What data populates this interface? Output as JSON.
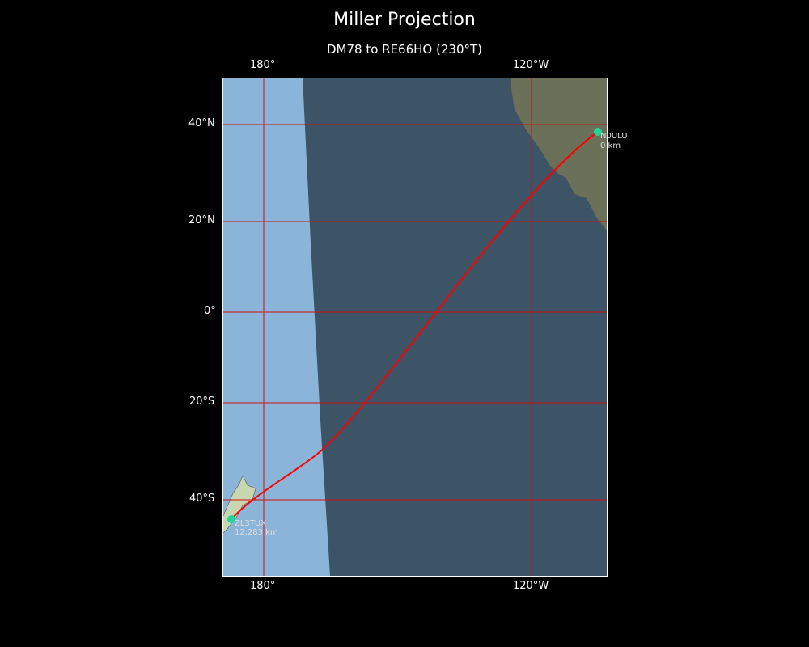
{
  "title": "Miller Projection",
  "subtitle": "DM78 to RE66HO (230°T)",
  "axes": {
    "lon_ticks": [
      "180°",
      "120°W"
    ],
    "lat_ticks": [
      "40°N",
      "20°N",
      "0°",
      "20°S",
      "40°S"
    ]
  },
  "route": {
    "color": "#ff0000",
    "marker_color": "#1fd69a",
    "start": {
      "label": "N0ULU",
      "distance": "0 km"
    },
    "end": {
      "label": "ZL3TUX",
      "distance": "12,283 km"
    }
  },
  "colors": {
    "ocean_day": "#8ab5d8",
    "ocean_night": "#3c5466",
    "grid": "#d01010",
    "background": "#000000"
  }
}
